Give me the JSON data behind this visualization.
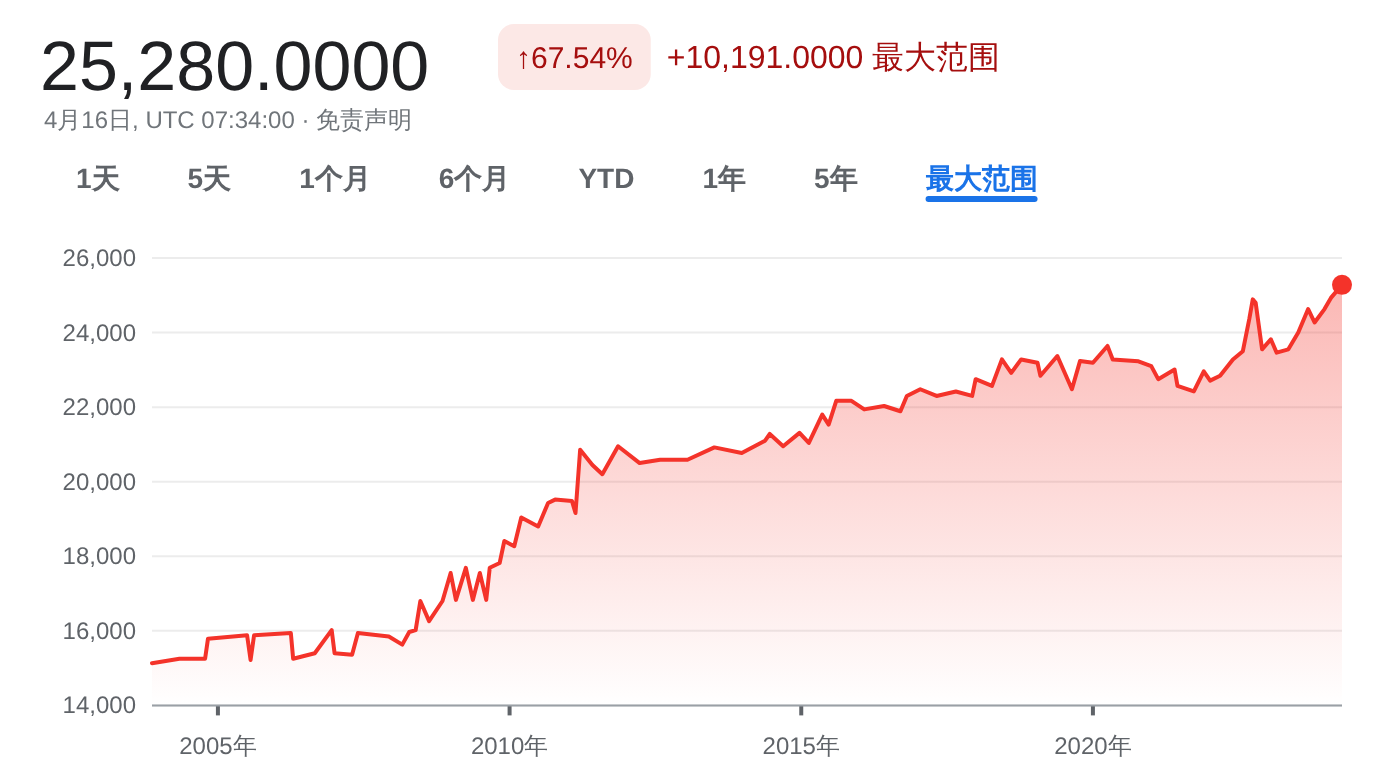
{
  "chart_data": {
    "type": "area",
    "title": "25,280.0000",
    "subtitle": "4月16日, UTC 07:34:00 · 免责声明",
    "annotations": [
      "↑67.54%",
      "+10,191.0000 最大范围",
      "1天",
      "5天",
      "1个月",
      "6个月",
      "YTD",
      "1年",
      "5年",
      "最大范围"
    ],
    "grid": "y",
    "xlim": [
      2003.87,
      2024.27
    ],
    "ylim": [
      14000,
      26000
    ],
    "xticks": [
      {
        "value": 2005,
        "label": "2005年"
      },
      {
        "value": 2010,
        "label": "2010年"
      },
      {
        "value": 2015,
        "label": "2015年"
      },
      {
        "value": 2020,
        "label": "2020年"
      }
    ],
    "yticks": [
      {
        "value": 14000,
        "label": "14,000"
      },
      {
        "value": 16000,
        "label": "16,000"
      },
      {
        "value": 18000,
        "label": "18,000"
      },
      {
        "value": 20000,
        "label": "20,000"
      },
      {
        "value": 22000,
        "label": "22,000"
      },
      {
        "value": 24000,
        "label": "24,000"
      },
      {
        "value": 26000,
        "label": "26,000"
      }
    ],
    "series": [
      {
        "color": "#f4332a",
        "x": [
          2003.87,
          2004.34,
          2004.78,
          2004.83,
          2005.5,
          2005.56,
          2005.62,
          2006.25,
          2006.29,
          2006.66,
          2006.95,
          2007.0,
          2007.3,
          2007.4,
          2007.93,
          2008.16,
          2008.28,
          2008.39,
          2008.47,
          2008.62,
          2008.85,
          2008.99,
          2009.08,
          2009.25,
          2009.37,
          2009.49,
          2009.6,
          2009.66,
          2009.83,
          2009.91,
          2010.08,
          2010.2,
          2010.49,
          2010.66,
          2010.78,
          2011.07,
          2011.13,
          2011.21,
          2011.42,
          2011.59,
          2011.86,
          2012.23,
          2012.58,
          2013.05,
          2013.51,
          2013.98,
          2014.38,
          2014.46,
          2014.69,
          2014.97,
          2015.13,
          2015.36,
          2015.47,
          2015.6,
          2015.86,
          2016.08,
          2016.42,
          2016.7,
          2016.81,
          2017.04,
          2017.32,
          2017.65,
          2017.93,
          2017.99,
          2018.27,
          2018.44,
          2018.6,
          2018.77,
          2019.05,
          2019.1,
          2019.39,
          2019.64,
          2019.78,
          2020.0,
          2020.25,
          2020.34,
          2020.78,
          2021.0,
          2021.12,
          2021.4,
          2021.45,
          2021.73,
          2021.9,
          2022.01,
          2022.18,
          2022.4,
          2022.57,
          2022.68,
          2022.74,
          2022.79,
          2022.9,
          2023.05,
          2023.15,
          2023.35,
          2023.52,
          2023.69,
          2023.8,
          2023.97,
          2024.08,
          2024.27
        ],
        "values": [
          15130,
          15250,
          15250,
          15790,
          15880,
          15220,
          15880,
          15940,
          15250,
          15400,
          16020,
          15400,
          15360,
          15940,
          15850,
          15630,
          15970,
          16020,
          16800,
          16260,
          16800,
          17550,
          16830,
          17690,
          16830,
          17550,
          16830,
          17690,
          17820,
          18410,
          18270,
          19040,
          18800,
          19430,
          19520,
          19480,
          19160,
          20860,
          20450,
          20200,
          20950,
          20500,
          20590,
          20590,
          20920,
          20770,
          21100,
          21280,
          20950,
          21310,
          21040,
          21800,
          21530,
          22170,
          22170,
          21940,
          22030,
          21890,
          22300,
          22480,
          22300,
          22420,
          22300,
          22750,
          22570,
          23280,
          22920,
          23280,
          23190,
          22840,
          23370,
          22480,
          23240,
          23190,
          23640,
          23280,
          23230,
          23100,
          22750,
          23010,
          22570,
          22420,
          22960,
          22710,
          22840,
          23280,
          23500,
          24360,
          24890,
          24800,
          23550,
          23820,
          23460,
          23550,
          24000,
          24630,
          24270,
          24630,
          24930,
          25280
        ]
      },
      {
        "type": "scatter",
        "color": "#f4332a",
        "x": [
          2024.27
        ],
        "values": [
          25280
        ]
      }
    ]
  }
}
